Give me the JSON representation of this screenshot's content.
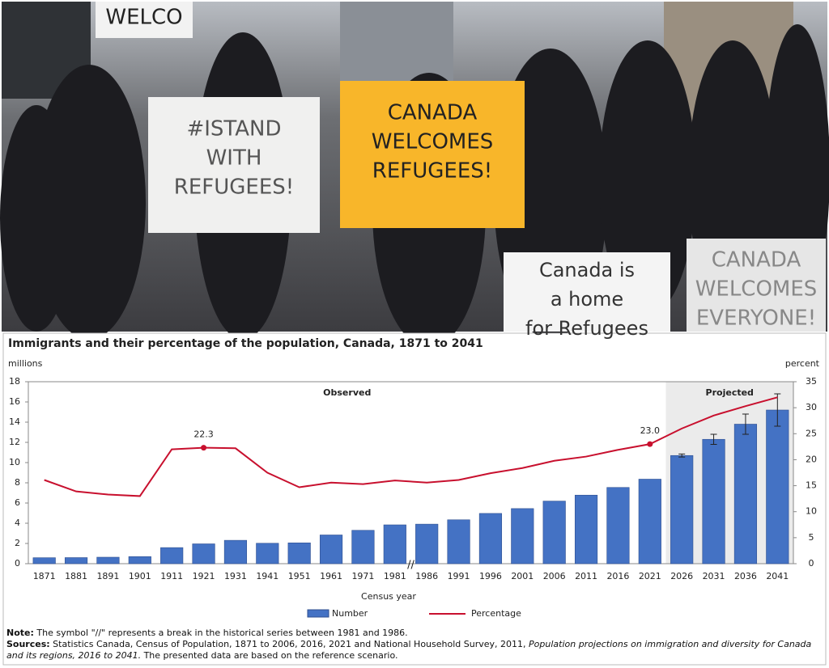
{
  "photo": {
    "signs": [
      {
        "lines": [
          "WELCO"
        ]
      },
      {
        "lines": [
          "#ISTAND",
          "WITH",
          "REFUGEES!"
        ]
      },
      {
        "lines": [
          "CANADA",
          "WELCOMES",
          "REFUGEES!"
        ]
      },
      {
        "lines": [
          "Canada is",
          "a home",
          "for Refugees"
        ]
      },
      {
        "lines": [
          "CANADA",
          "WELCOMES",
          "EVERYONE!"
        ]
      }
    ]
  },
  "chart_data": {
    "type": "bar_line",
    "title": "Immigrants and their percentage of the population, Canada, 1871 to 2041",
    "y_unit": "millions",
    "y2_unit": "percent",
    "x_label": "Census year",
    "observed_label": "Observed",
    "projected_label": "Projected",
    "projected_from": "2026",
    "break_symbol": "//",
    "categories": [
      "1871",
      "1881",
      "1891",
      "1901",
      "1911",
      "1921",
      "1931",
      "1941",
      "1951",
      "1961",
      "1971",
      "1981",
      "1986",
      "1991",
      "1996",
      "2001",
      "2006",
      "2011",
      "2016",
      "2021",
      "2026",
      "2031",
      "2036",
      "2041"
    ],
    "series": [
      {
        "name": "Number",
        "color": "#4472c4",
        "values": [
          0.59,
          0.6,
          0.64,
          0.7,
          1.59,
          1.96,
          2.31,
          2.02,
          2.06,
          2.84,
          3.3,
          3.84,
          3.91,
          4.34,
          4.97,
          5.45,
          6.19,
          6.78,
          7.54,
          8.36,
          10.7,
          12.3,
          13.8,
          15.2
        ],
        "errors": [
          null,
          null,
          null,
          null,
          null,
          null,
          null,
          null,
          null,
          null,
          null,
          null,
          null,
          null,
          null,
          null,
          null,
          null,
          null,
          null,
          0.15,
          0.5,
          1.0,
          1.6
        ]
      },
      {
        "name": "Percentage",
        "color": "#c8102e",
        "axis": "y2",
        "values": [
          16.1,
          13.9,
          13.3,
          13.0,
          22.0,
          22.3,
          22.2,
          17.5,
          14.7,
          15.6,
          15.3,
          16.0,
          15.6,
          16.1,
          17.4,
          18.4,
          19.8,
          20.6,
          21.9,
          23.0,
          26.0,
          28.5,
          30.3,
          32.0
        ],
        "value_labels": [
          null,
          null,
          null,
          null,
          null,
          "22.3",
          null,
          null,
          null,
          null,
          null,
          null,
          null,
          null,
          null,
          null,
          null,
          null,
          null,
          "23.0",
          null,
          null,
          null,
          null
        ]
      }
    ],
    "ylim": [
      0,
      18
    ],
    "yticks": [
      0,
      2,
      4,
      6,
      8,
      10,
      12,
      14,
      16,
      18
    ],
    "y2lim": [
      0,
      35
    ],
    "y2ticks": [
      0,
      5,
      10,
      15,
      20,
      25,
      30,
      35
    ],
    "note_label": "Note:",
    "note": "The symbol \"//\" represents a break in the historical series between 1981 and 1986.",
    "sources_label": "Sources:",
    "sources": "Statistics Canada, Census of Population, 1871 to 2006, 2016, 2021 and National Household Survey, 2011,",
    "sources_italic": "Population projections on immigration and diversity for Canada and its regions, 2016 to 2041.",
    "sources_end": "The presented data are based on the reference scenario."
  }
}
